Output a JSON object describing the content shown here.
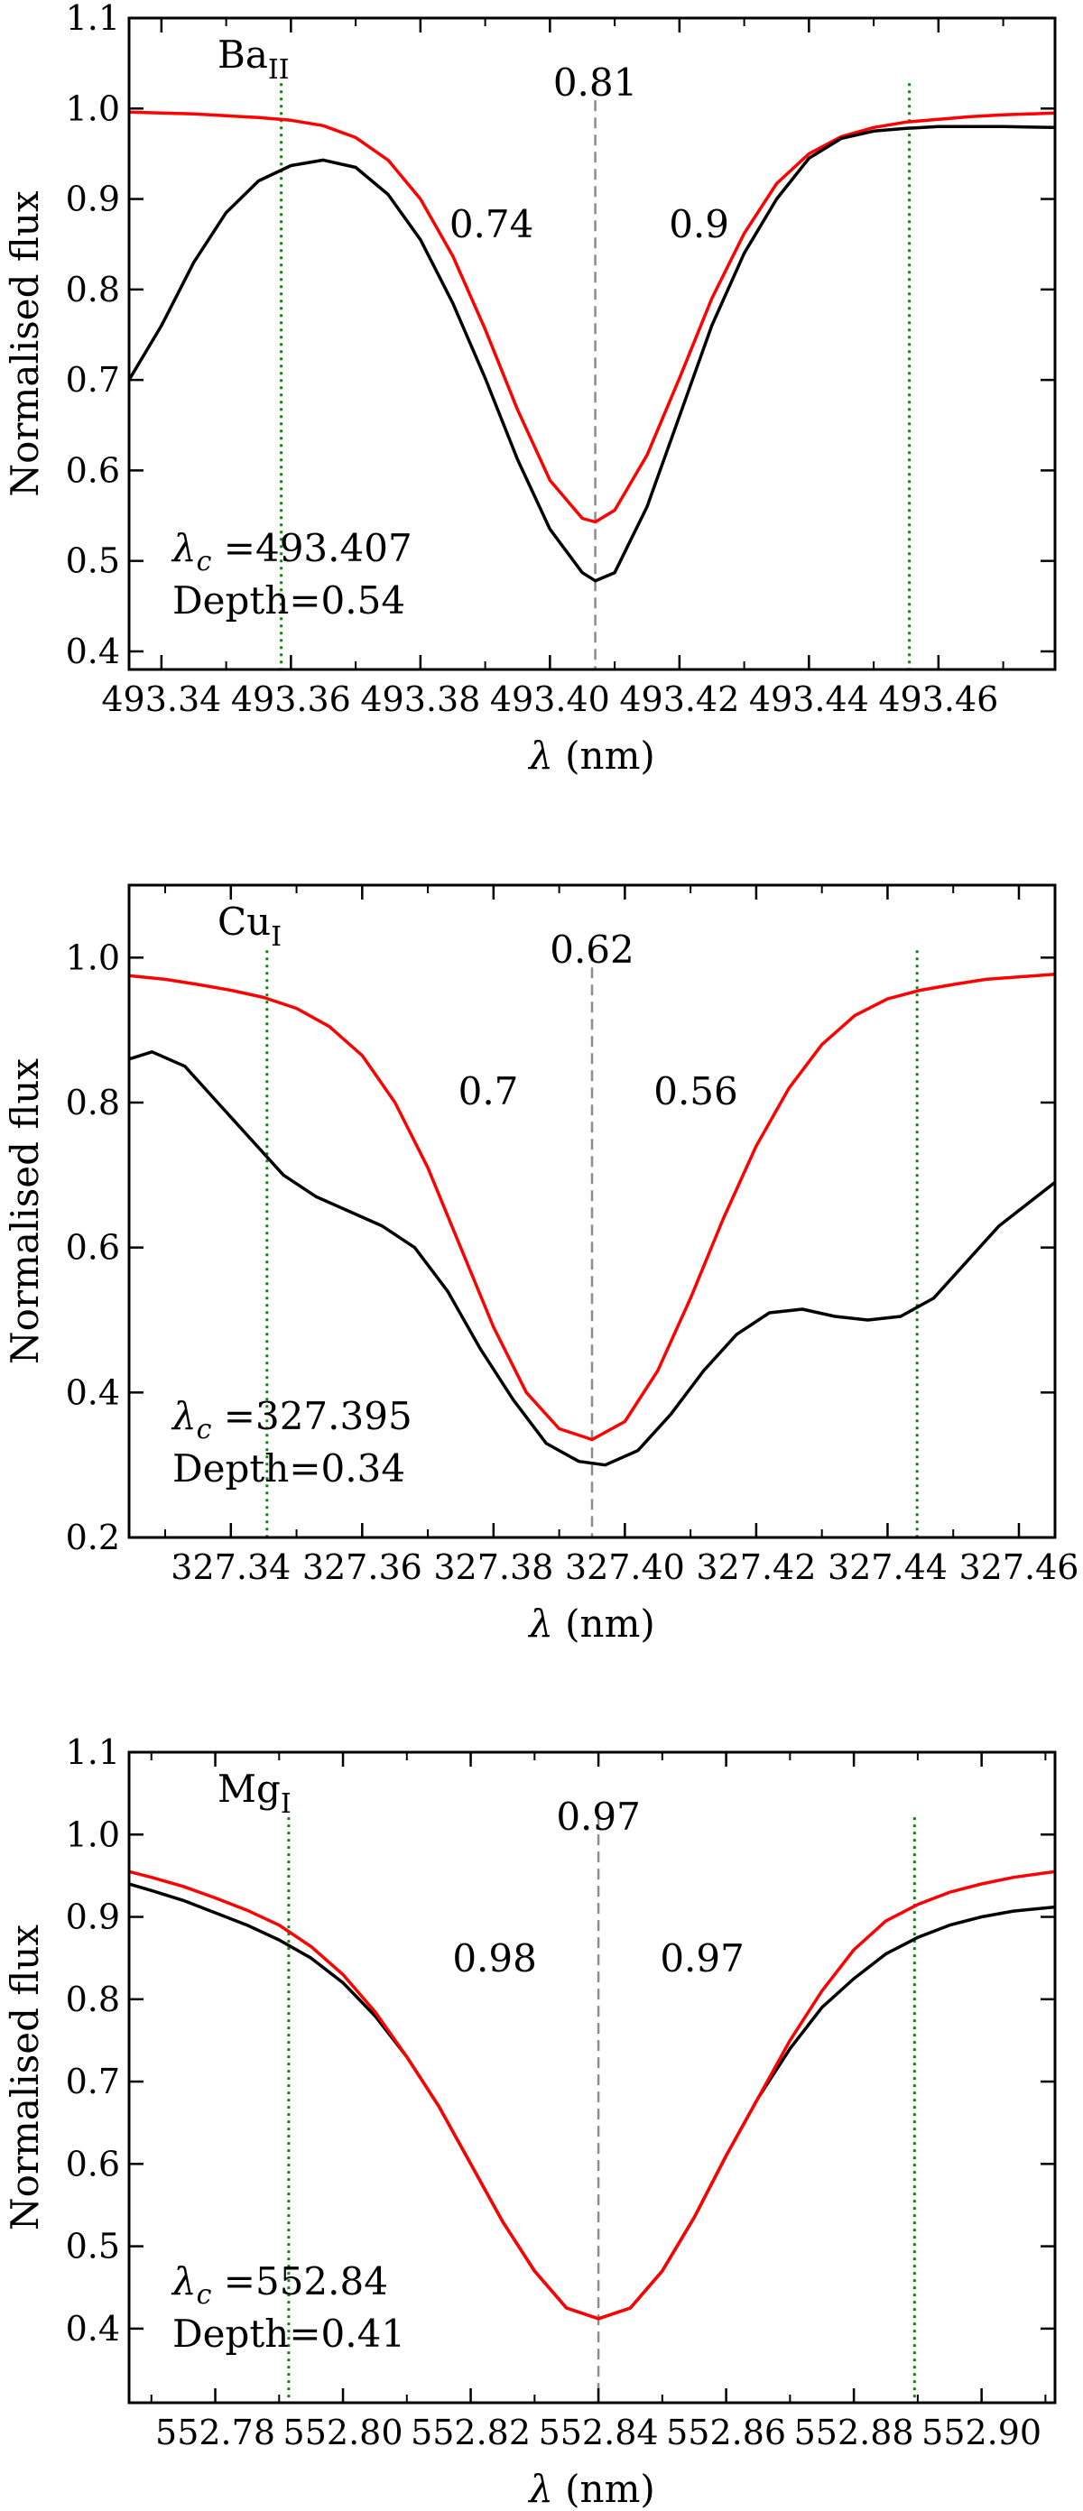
{
  "chart_data": [
    {
      "type": "line",
      "element": "Ba",
      "ion": "II",
      "xlabel_symbol": "λ",
      "xlabel_unit": "(nm)",
      "ylabel": "Normalised flux",
      "xlim": [
        493.335,
        493.478
      ],
      "ylim": [
        0.38,
        1.1
      ],
      "xticks": [
        "493.34",
        "493.36",
        "493.38",
        "493.40",
        "493.42",
        "493.44",
        "493.46"
      ],
      "yticks": [
        "0.4",
        "0.5",
        "0.6",
        "0.7",
        "0.8",
        "0.9",
        "1.0",
        "1.1"
      ],
      "center_marker": 493.407,
      "bounds": [
        493.3585,
        493.4555
      ],
      "center_value_label": "0.81",
      "left_value_label": "0.74",
      "right_value_label": "0.9",
      "lambda_c_label": "=493.407",
      "depth_label": "Depth=0.54",
      "series": [
        {
          "color": "#ff0000",
          "x": [
            493.335,
            493.34,
            493.345,
            493.35,
            493.355,
            493.36,
            493.365,
            493.37,
            493.375,
            493.38,
            493.385,
            493.39,
            493.395,
            493.4,
            493.405,
            493.407,
            493.41,
            493.415,
            493.42,
            493.425,
            493.43,
            493.435,
            493.44,
            493.445,
            493.45,
            493.455,
            493.46,
            493.465,
            493.47,
            493.478
          ],
          "y": [
            0.996,
            0.995,
            0.994,
            0.992,
            0.99,
            0.987,
            0.981,
            0.968,
            0.943,
            0.9,
            0.837,
            0.756,
            0.667,
            0.589,
            0.547,
            0.543,
            0.556,
            0.617,
            0.702,
            0.79,
            0.862,
            0.917,
            0.95,
            0.969,
            0.979,
            0.985,
            0.988,
            0.991,
            0.993,
            0.995
          ]
        },
        {
          "color": "#000000",
          "x": [
            493.335,
            493.34,
            493.345,
            493.35,
            493.355,
            493.36,
            493.365,
            493.37,
            493.375,
            493.38,
            493.385,
            493.39,
            493.395,
            493.4,
            493.405,
            493.407,
            493.41,
            493.415,
            493.42,
            493.425,
            493.43,
            493.435,
            493.44,
            493.445,
            493.45,
            493.455,
            493.46,
            493.465,
            493.47,
            493.478
          ],
          "y": [
            0.7,
            0.76,
            0.83,
            0.885,
            0.92,
            0.937,
            0.943,
            0.935,
            0.905,
            0.855,
            0.785,
            0.702,
            0.612,
            0.535,
            0.487,
            0.478,
            0.487,
            0.56,
            0.66,
            0.76,
            0.84,
            0.9,
            0.945,
            0.967,
            0.975,
            0.978,
            0.98,
            0.98,
            0.98,
            0.979
          ]
        }
      ]
    },
    {
      "type": "line",
      "element": "Cu",
      "ion": "I",
      "xlabel_symbol": "λ",
      "xlabel_unit": "(nm)",
      "ylabel": "Normalised flux",
      "xlim": [
        327.3245,
        327.4655
      ],
      "ylim": [
        0.2,
        1.1
      ],
      "xticks": [
        "327.34",
        "327.36",
        "327.38",
        "327.40",
        "327.42",
        "327.44",
        "327.46"
      ],
      "yticks": [
        "0.2",
        "0.4",
        "0.6",
        "0.8",
        "1.0"
      ],
      "center_marker": 327.395,
      "bounds": [
        327.3455,
        327.4445
      ],
      "center_value_label": "0.62",
      "left_value_label": "0.7",
      "right_value_label": "0.56",
      "lambda_c_label": "=327.395",
      "depth_label": "Depth=0.34",
      "series": [
        {
          "color": "#ff0000",
          "x": [
            327.3245,
            327.33,
            327.335,
            327.34,
            327.345,
            327.35,
            327.355,
            327.36,
            327.365,
            327.37,
            327.375,
            327.38,
            327.385,
            327.39,
            327.395,
            327.4,
            327.405,
            327.41,
            327.415,
            327.42,
            327.425,
            327.43,
            327.435,
            327.44,
            327.445,
            327.45,
            327.455,
            327.4655
          ],
          "y": [
            0.975,
            0.97,
            0.963,
            0.955,
            0.945,
            0.93,
            0.905,
            0.865,
            0.8,
            0.71,
            0.6,
            0.49,
            0.4,
            0.35,
            0.335,
            0.36,
            0.43,
            0.53,
            0.64,
            0.74,
            0.82,
            0.88,
            0.92,
            0.943,
            0.955,
            0.963,
            0.97,
            0.977
          ]
        },
        {
          "color": "#000000",
          "x": [
            327.3245,
            327.328,
            327.333,
            327.338,
            327.343,
            327.348,
            327.353,
            327.358,
            327.363,
            327.368,
            327.373,
            327.378,
            327.383,
            327.388,
            327.393,
            327.397,
            327.402,
            327.407,
            327.412,
            327.417,
            327.422,
            327.427,
            327.432,
            327.437,
            327.442,
            327.447,
            327.452,
            327.457,
            327.4655
          ],
          "y": [
            0.86,
            0.87,
            0.85,
            0.8,
            0.75,
            0.7,
            0.67,
            0.65,
            0.63,
            0.6,
            0.54,
            0.46,
            0.39,
            0.33,
            0.305,
            0.3,
            0.32,
            0.37,
            0.43,
            0.48,
            0.51,
            0.515,
            0.505,
            0.5,
            0.505,
            0.53,
            0.58,
            0.63,
            0.69
          ]
        }
      ]
    },
    {
      "type": "line",
      "element": "Mg",
      "ion": "I",
      "xlabel_symbol": "λ",
      "xlabel_unit": "(nm)",
      "ylabel": "Normalised flux",
      "xlim": [
        552.7665,
        552.9115
      ],
      "ylim": [
        0.31,
        1.1
      ],
      "xticks": [
        "552.78",
        "552.80",
        "552.82",
        "552.84",
        "552.86",
        "552.88",
        "552.90"
      ],
      "yticks": [
        "0.4",
        "0.5",
        "0.6",
        "0.7",
        "0.8",
        "0.9",
        "1.0",
        "1.1"
      ],
      "center_marker": 552.84,
      "bounds": [
        552.7915,
        552.8895
      ],
      "center_value_label": "0.97",
      "left_value_label": "0.98",
      "right_value_label": "0.97",
      "lambda_c_label": "=552.84",
      "depth_label": "Depth=0.41",
      "series": [
        {
          "color": "#000000",
          "x": [
            552.7665,
            552.77,
            552.775,
            552.78,
            552.785,
            552.79,
            552.795,
            552.8,
            552.805,
            552.81,
            552.815,
            552.82,
            552.825,
            552.83,
            552.835,
            552.84,
            552.845,
            552.85,
            552.855,
            552.86,
            552.865,
            552.87,
            552.875,
            552.88,
            552.885,
            552.89,
            552.895,
            552.9,
            552.905,
            552.9115
          ],
          "y": [
            0.94,
            0.932,
            0.92,
            0.905,
            0.89,
            0.872,
            0.85,
            0.82,
            0.78,
            0.73,
            0.67,
            0.6,
            0.53,
            0.47,
            0.425,
            0.412,
            0.425,
            0.47,
            0.535,
            0.61,
            0.68,
            0.74,
            0.79,
            0.825,
            0.855,
            0.875,
            0.89,
            0.9,
            0.907,
            0.912
          ]
        },
        {
          "color": "#ff0000",
          "x": [
            552.7665,
            552.77,
            552.775,
            552.78,
            552.785,
            552.79,
            552.795,
            552.8,
            552.805,
            552.81,
            552.815,
            552.82,
            552.825,
            552.83,
            552.835,
            552.84,
            552.845,
            552.85,
            552.855,
            552.86,
            552.865,
            552.87,
            552.875,
            552.88,
            552.885,
            552.89,
            552.895,
            552.9,
            552.905,
            552.9115
          ],
          "y": [
            0.955,
            0.948,
            0.937,
            0.923,
            0.908,
            0.89,
            0.864,
            0.83,
            0.785,
            0.73,
            0.67,
            0.6,
            0.53,
            0.47,
            0.425,
            0.412,
            0.425,
            0.47,
            0.535,
            0.61,
            0.68,
            0.75,
            0.81,
            0.86,
            0.895,
            0.915,
            0.93,
            0.94,
            0.948,
            0.955
          ]
        }
      ]
    }
  ]
}
